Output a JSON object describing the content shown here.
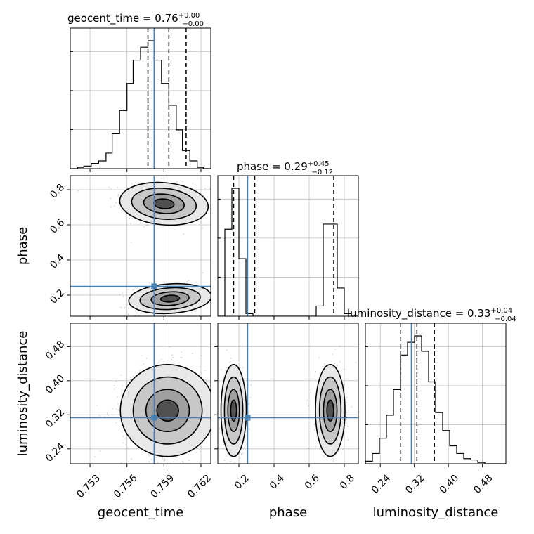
{
  "chart_data": {
    "type": "corner",
    "parameters": [
      "geocent_time",
      "phase",
      "luminosity_distance"
    ],
    "titles": [
      {
        "text": "geocent_time = 0.76",
        "plus": "+0.00",
        "minus": "−0.00"
      },
      {
        "text": "phase = 0.29",
        "plus": "+0.45",
        "minus": "−0.12"
      },
      {
        "text": "luminosity_distance = 0.33",
        "plus": "+0.04",
        "minus": "−0.04"
      }
    ],
    "axis_labels": {
      "x": [
        "geocent_time",
        "phase",
        "luminosity_distance"
      ],
      "y": [
        "phase",
        "luminosity_distance"
      ]
    },
    "ranges": {
      "geocent_time": [
        0.7514,
        0.7628
      ],
      "phase": [
        0.08,
        0.88
      ],
      "luminosity_distance": [
        0.205,
        0.535
      ]
    },
    "ticks": {
      "geocent_time": [
        0.753,
        0.756,
        0.759,
        0.762
      ],
      "phase": [
        0.2,
        0.4,
        0.6,
        0.8
      ],
      "phase_y": [
        0.2,
        0.4,
        0.6,
        0.8
      ],
      "luminosity_distance": [
        0.24,
        0.32,
        0.4,
        0.48
      ],
      "luminosity_distance_y": [
        0.24,
        0.32,
        0.4,
        0.48
      ]
    },
    "tick_labels": {
      "geocent_time": [
        "0.753",
        "0.756",
        "0.759",
        "0.762"
      ],
      "phase": [
        "0.2",
        "0.4",
        "0.6",
        "0.8"
      ],
      "phase_y": [
        "0.2",
        "0.4",
        "0.6",
        "0.8"
      ],
      "luminosity_distance": [
        "0.24",
        "0.32",
        "0.40",
        "0.48"
      ],
      "luminosity_distance_y": [
        "0.24",
        "0.32",
        "0.40",
        "0.48"
      ]
    },
    "truths": {
      "geocent_time": 0.7582,
      "phase": 0.25,
      "luminosity_distance": 0.313
    },
    "quantiles": {
      "geocent_time": [
        0.7577,
        0.7594,
        0.7608
      ],
      "phase": [
        0.17,
        0.29,
        0.74
      ],
      "luminosity_distance": [
        0.288,
        0.326,
        0.367
      ]
    },
    "histograms": {
      "geocent_time": {
        "edges": [
          0.7514,
          0.752,
          0.7525,
          0.7531,
          0.7537,
          0.7543,
          0.7548,
          0.7554,
          0.756,
          0.7565,
          0.7571,
          0.7577,
          0.7582,
          0.7588,
          0.7594,
          0.76,
          0.7605,
          0.7611,
          0.7617,
          0.7622,
          0.7628
        ],
        "counts": [
          0,
          0.01,
          0.02,
          0.04,
          0.06,
          0.12,
          0.27,
          0.45,
          0.66,
          0.84,
          0.94,
          0.99,
          0.84,
          0.66,
          0.49,
          0.3,
          0.14,
          0.06,
          0.01,
          0
        ]
      },
      "phase": {
        "edges": [
          0.08,
          0.12,
          0.16,
          0.2,
          0.24,
          0.28,
          0.32,
          0.36,
          0.4,
          0.44,
          0.48,
          0.52,
          0.56,
          0.6,
          0.64,
          0.68,
          0.72,
          0.76,
          0.8,
          0.84,
          0.88
        ],
        "counts": [
          0,
          0.68,
          1.0,
          0.45,
          0.02,
          0,
          0,
          0,
          0,
          0,
          0,
          0,
          0,
          0,
          0.08,
          0.72,
          0.72,
          0.22,
          0.02,
          0
        ]
      },
      "luminosity_distance": {
        "edges": [
          0.205,
          0.2215,
          0.238,
          0.2545,
          0.271,
          0.2875,
          0.304,
          0.3205,
          0.337,
          0.3535,
          0.37,
          0.3865,
          0.403,
          0.4195,
          0.436,
          0.4525,
          0.469,
          0.4855,
          0.502,
          0.5185,
          0.535
        ],
        "counts": [
          0.02,
          0.08,
          0.2,
          0.38,
          0.58,
          0.85,
          0.95,
          1.0,
          0.88,
          0.64,
          0.4,
          0.26,
          0.14,
          0.08,
          0.04,
          0.03,
          0.01,
          0,
          0,
          0
        ]
      }
    },
    "modes": {
      "geocent_time_phase": [
        {
          "center": [
            0.759,
            0.72
          ],
          "sd": [
            0.0015,
            0.05
          ],
          "rho": -0.2,
          "weight": 0.5
        },
        {
          "center": [
            0.7595,
            0.18
          ],
          "sd": [
            0.0014,
            0.035
          ],
          "rho": 0.15,
          "weight": 0.5
        }
      ],
      "geocent_time_luminosity_distance": [
        {
          "center": [
            0.7593,
            0.33
          ],
          "sd": [
            0.0016,
            0.045
          ],
          "rho": 0.0,
          "weight": 1.0
        }
      ],
      "phase_luminosity_distance": [
        {
          "center": [
            0.17,
            0.33
          ],
          "sd": [
            0.03,
            0.045
          ],
          "rho": 0.0,
          "weight": 0.5
        },
        {
          "center": [
            0.72,
            0.33
          ],
          "sd": [
            0.035,
            0.045
          ],
          "rho": 0.0,
          "weight": 0.5
        }
      ]
    },
    "grid": true,
    "colors": {
      "truth": "#4682b4",
      "contour": "#000000",
      "hist": "#000000",
      "scatter": "#808080",
      "grid": "#c0c0c0"
    }
  }
}
